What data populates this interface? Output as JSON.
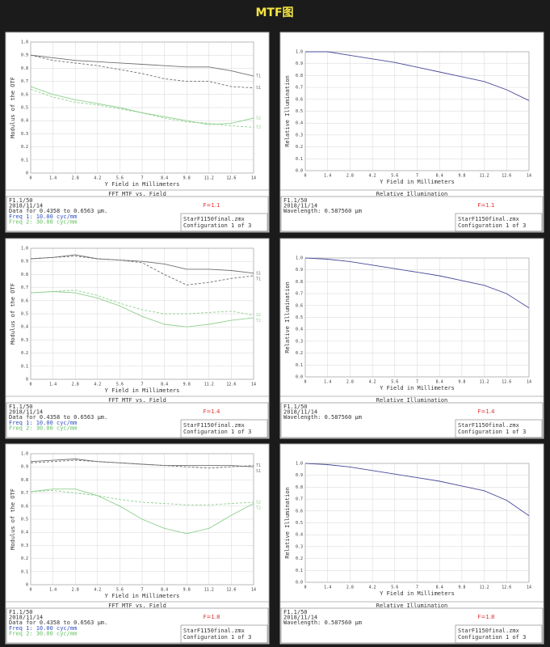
{
  "header": {
    "title": "MTF图"
  },
  "chart_data": [
    {
      "type": "line",
      "title": "FFT MTF vs. Field",
      "xlabel": "Y Field in Millimeters",
      "ylabel": "Modulus of the OTF",
      "x": [
        0,
        1.4,
        2.8,
        4.2,
        5.6,
        7,
        8.4,
        9.8,
        11.2,
        12.6,
        14
      ],
      "xlim": [
        0,
        14
      ],
      "xticks": [
        0,
        1.4,
        2.8,
        4.2,
        5.6,
        7,
        8.4,
        9.8,
        11.2,
        12.6,
        14
      ],
      "ylim": [
        0,
        1
      ],
      "yticks": [
        0,
        0.1,
        0.2,
        0.3,
        0.4,
        0.5,
        0.6,
        0.7,
        0.8,
        0.9,
        {
          "value": 1,
          "label": "1.0"
        }
      ],
      "grid": true,
      "series": [
        {
          "name": "T1",
          "color": "#707070",
          "dash": false,
          "values": [
            0.9,
            0.88,
            0.86,
            0.85,
            0.84,
            0.83,
            0.82,
            0.81,
            0.81,
            0.78,
            0.74
          ]
        },
        {
          "name": "S1",
          "color": "#707070",
          "dash": true,
          "values": [
            0.9,
            0.86,
            0.84,
            0.82,
            0.79,
            0.76,
            0.72,
            0.7,
            0.7,
            0.66,
            0.65
          ]
        },
        {
          "name": "S2",
          "color": "#8fd08f",
          "dash": false,
          "values": [
            0.66,
            0.6,
            0.56,
            0.53,
            0.5,
            0.46,
            0.43,
            0.4,
            0.37,
            0.38,
            0.42
          ]
        },
        {
          "name": "T2",
          "color": "#8fd08f",
          "dash": true,
          "values": [
            0.64,
            0.58,
            0.54,
            0.52,
            0.49,
            0.46,
            0.42,
            0.39,
            0.38,
            0.36,
            0.35
          ]
        }
      ],
      "notes": [
        {
          "text": "F1.1/50",
          "color": "#333333"
        },
        {
          "text": "2018/11/14",
          "color": "#333333"
        },
        {
          "text": "Data for 0.4358 to 0.6563 µm.",
          "color": "#333333"
        },
        {
          "text": "Freq 1:  10.00 cyc/mm",
          "color": "#3050c0"
        },
        {
          "text": "Freq 2:  30.00 cyc/mm",
          "color": "#60c060"
        }
      ],
      "f_label": "F=1.1",
      "f_label_color": "#e03030",
      "file_lines": [
        "StarF1150final.zmx",
        "Configuration 1 of 3"
      ]
    },
    {
      "type": "line",
      "title": "Relative Illumination",
      "xlabel": "Y Field in Millimeters",
      "ylabel": "Relative Illumination",
      "x": [
        0,
        1.4,
        2.8,
        4.2,
        5.6,
        7,
        8.4,
        9.8,
        11.2,
        12.6,
        14
      ],
      "xlim": [
        0,
        14
      ],
      "xticks": [
        0,
        1.4,
        2.8,
        4.2,
        5.6,
        7,
        8.4,
        9.8,
        11.2,
        12.6,
        14
      ],
      "ylim": [
        0,
        1
      ],
      "yticks": [
        {
          "value": 0,
          "label": "0.0"
        },
        0.1,
        0.2,
        0.3,
        0.4,
        0.5,
        0.6,
        0.7,
        0.8,
        0.9,
        {
          "value": 1,
          "label": "1.0"
        }
      ],
      "grid": true,
      "color": "#4a4a9a",
      "values": [
        1.0,
        1.0,
        0.97,
        0.94,
        0.91,
        0.87,
        0.83,
        0.79,
        0.75,
        0.68,
        0.59
      ],
      "notes": [
        {
          "text": "F1.1/50",
          "color": "#333333"
        },
        {
          "text": "2018/11/14",
          "color": "#333333"
        },
        {
          "text": "Wavelength: 0.587560 µm",
          "color": "#333333"
        }
      ],
      "f_label": "F=1.1",
      "f_label_color": "#e03030",
      "file_lines": [
        "StarF1150final.zmx",
        "Configuration 1 of 3"
      ]
    },
    {
      "type": "line",
      "title": "FFT MTF vs. Field",
      "xlabel": "Y Field in Millimeters",
      "ylabel": "Modulus of the OTF",
      "x": [
        0,
        1.4,
        2.8,
        4.2,
        5.6,
        7,
        8.4,
        9.8,
        11.2,
        12.6,
        14
      ],
      "xlim": [
        0,
        14
      ],
      "xticks": [
        0,
        1.4,
        2.8,
        4.2,
        5.6,
        7,
        8.4,
        9.8,
        11.2,
        12.6,
        14
      ],
      "ylim": [
        0,
        1
      ],
      "yticks": [
        0,
        0.1,
        0.2,
        0.3,
        0.4,
        0.5,
        0.6,
        0.7,
        0.8,
        0.9,
        {
          "value": 1,
          "label": "1.0"
        }
      ],
      "grid": true,
      "series": [
        {
          "name": "S1",
          "color": "#707070",
          "dash": false,
          "values": [
            0.92,
            0.93,
            0.95,
            0.92,
            0.91,
            0.9,
            0.88,
            0.84,
            0.84,
            0.83,
            0.81
          ]
        },
        {
          "name": "T1",
          "color": "#707070",
          "dash": true,
          "values": [
            0.92,
            0.93,
            0.94,
            0.92,
            0.91,
            0.89,
            0.8,
            0.72,
            0.74,
            0.77,
            0.79
          ]
        },
        {
          "name": "S2",
          "color": "#8fd08f",
          "dash": true,
          "values": [
            0.66,
            0.67,
            0.68,
            0.64,
            0.58,
            0.53,
            0.5,
            0.5,
            0.51,
            0.52,
            0.49
          ]
        },
        {
          "name": "T2",
          "color": "#8fd08f",
          "dash": false,
          "values": [
            0.66,
            0.67,
            0.66,
            0.62,
            0.56,
            0.48,
            0.42,
            0.4,
            0.42,
            0.45,
            0.47
          ]
        }
      ],
      "notes": [
        {
          "text": "F1.1/50",
          "color": "#333333"
        },
        {
          "text": "2018/11/14",
          "color": "#333333"
        },
        {
          "text": "Data for 0.4358 to 0.6563 µm.",
          "color": "#333333"
        },
        {
          "text": "Freq 1:  10.00 cyc/mm",
          "color": "#3050c0"
        },
        {
          "text": "Freq 2:  30.00 cyc/mm",
          "color": "#60c060"
        }
      ],
      "f_label": "F=1.4",
      "f_label_color": "#e03030",
      "file_lines": [
        "StarF1150final.zmx",
        "Configuration 1 of 3"
      ]
    },
    {
      "type": "line",
      "title": "Relative Illumination",
      "xlabel": "Y Field in Millimeters",
      "ylabel": "Relative Illumination",
      "x": [
        0,
        1.4,
        2.8,
        4.2,
        5.6,
        7,
        8.4,
        9.8,
        11.2,
        12.6,
        14
      ],
      "xlim": [
        0,
        14
      ],
      "xticks": [
        0,
        1.4,
        2.8,
        4.2,
        5.6,
        7,
        8.4,
        9.8,
        11.2,
        12.6,
        14
      ],
      "ylim": [
        0,
        1
      ],
      "yticks": [
        {
          "value": 0,
          "label": "0.0"
        },
        0.1,
        0.2,
        0.3,
        0.4,
        0.5,
        0.6,
        0.7,
        0.8,
        0.9,
        {
          "value": 1,
          "label": "1.0"
        }
      ],
      "grid": true,
      "color": "#4a4a9a",
      "values": [
        1.0,
        0.99,
        0.97,
        0.94,
        0.91,
        0.88,
        0.85,
        0.81,
        0.77,
        0.7,
        0.58
      ],
      "notes": [
        {
          "text": "F1.1/50",
          "color": "#333333"
        },
        {
          "text": "2018/11/14",
          "color": "#333333"
        },
        {
          "text": "Wavelength: 0.587560 µm",
          "color": "#333333"
        }
      ],
      "f_label": "F=1.4",
      "f_label_color": "#e03030",
      "file_lines": [
        "StarF1150final.zmx",
        "Configuration 1 of 3"
      ]
    },
    {
      "type": "line",
      "title": "FFT MTF vs. Field",
      "xlabel": "Y Field in Millimeters",
      "ylabel": "Modulus of the OTF",
      "x": [
        0,
        1.4,
        2.8,
        4.2,
        5.6,
        7,
        8.4,
        9.8,
        11.2,
        12.6,
        14
      ],
      "xlim": [
        0,
        14
      ],
      "xticks": [
        0,
        1.4,
        2.8,
        4.2,
        5.6,
        7,
        8.4,
        9.8,
        11.2,
        12.6,
        14
      ],
      "ylim": [
        0,
        1
      ],
      "yticks": [
        0,
        0.1,
        0.2,
        0.3,
        0.4,
        0.5,
        0.6,
        0.7,
        0.8,
        0.9,
        {
          "value": 1,
          "label": "1.0"
        }
      ],
      "grid": true,
      "series": [
        {
          "name": "S1",
          "color": "#707070",
          "dash": false,
          "values": [
            0.94,
            0.95,
            0.96,
            0.94,
            0.93,
            0.92,
            0.91,
            0.91,
            0.91,
            0.91,
            0.9
          ]
        },
        {
          "name": "T1",
          "color": "#707070",
          "dash": true,
          "values": [
            0.93,
            0.94,
            0.95,
            0.94,
            0.93,
            0.92,
            0.91,
            0.9,
            0.89,
            0.9,
            0.91
          ]
        },
        {
          "name": "S2",
          "color": "#8fd08f",
          "dash": true,
          "values": [
            0.71,
            0.72,
            0.7,
            0.68,
            0.65,
            0.63,
            0.62,
            0.61,
            0.61,
            0.62,
            0.63
          ]
        },
        {
          "name": "T2",
          "color": "#8fd08f",
          "dash": false,
          "values": [
            0.71,
            0.73,
            0.73,
            0.68,
            0.6,
            0.5,
            0.43,
            0.39,
            0.43,
            0.53,
            0.62
          ]
        }
      ],
      "notes": [
        {
          "text": "F1.1/50",
          "color": "#333333"
        },
        {
          "text": "2018/11/14",
          "color": "#333333"
        },
        {
          "text": "Data for 0.4358 to 0.6563 µm.",
          "color": "#333333"
        },
        {
          "text": "Freq 1:  10.00 cyc/mm",
          "color": "#3050c0"
        },
        {
          "text": "Freq 2:  30.00 cyc/mm",
          "color": "#60c060"
        }
      ],
      "f_label": "F=1.8",
      "f_label_color": "#e03030",
      "file_lines": [
        "StarF1150final.zmx",
        "Configuration 1 of 3"
      ]
    },
    {
      "type": "line",
      "title": "Relative Illumination",
      "xlabel": "Y Field in Millimeters",
      "ylabel": "Relative Illumination",
      "x": [
        0,
        1.4,
        2.8,
        4.2,
        5.6,
        7,
        8.4,
        9.8,
        11.2,
        12.6,
        14
      ],
      "xlim": [
        0,
        14
      ],
      "xticks": [
        0,
        1.4,
        2.8,
        4.2,
        5.6,
        7,
        8.4,
        9.8,
        11.2,
        12.6,
        14
      ],
      "ylim": [
        0,
        1
      ],
      "yticks": [
        {
          "value": 0,
          "label": "0.0"
        },
        0.1,
        0.2,
        0.3,
        0.4,
        0.5,
        0.6,
        0.7,
        0.8,
        0.9,
        {
          "value": 1,
          "label": "1.0"
        }
      ],
      "grid": true,
      "color": "#4a4a9a",
      "values": [
        1.0,
        0.99,
        0.97,
        0.94,
        0.91,
        0.88,
        0.85,
        0.81,
        0.77,
        0.69,
        0.56
      ],
      "notes": [
        {
          "text": "F1.1/50",
          "color": "#333333"
        },
        {
          "text": "2018/11/14",
          "color": "#333333"
        },
        {
          "text": "Wavelength: 0.587560 µm",
          "color": "#333333"
        }
      ],
      "f_label": "F=1.8",
      "f_label_color": "#e03030",
      "file_lines": [
        "StarF1150final.zmx",
        "Configuration 1 of 3"
      ]
    }
  ]
}
